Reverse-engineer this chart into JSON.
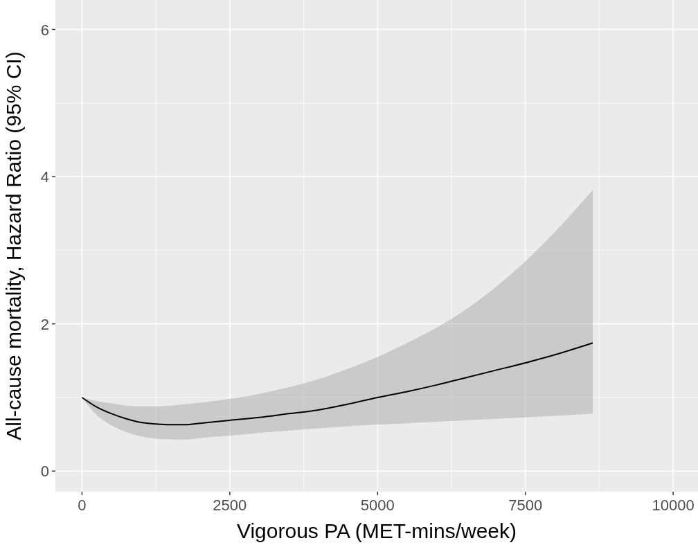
{
  "chart_data": {
    "type": "line",
    "xlabel": "Vigorous PA (MET-mins/week)",
    "ylabel": "All-cause mortality, Hazard Ratio (95% CI)",
    "x": [
      0,
      250,
      500,
      750,
      1000,
      1250,
      1500,
      1750,
      2000,
      2500,
      3000,
      3500,
      4000,
      4500,
      5000,
      5500,
      6000,
      6500,
      7000,
      7500,
      8000,
      8640
    ],
    "series": [
      {
        "color": "#000000",
        "values": [
          1.0,
          0.87,
          0.78,
          0.71,
          0.66,
          0.64,
          0.63,
          0.63,
          0.65,
          0.69,
          0.73,
          0.78,
          0.83,
          0.91,
          1.0,
          1.08,
          1.17,
          1.27,
          1.37,
          1.47,
          1.58,
          1.74
        ],
        "lower": [
          1.0,
          0.76,
          0.62,
          0.53,
          0.47,
          0.44,
          0.43,
          0.43,
          0.45,
          0.48,
          0.52,
          0.55,
          0.58,
          0.61,
          0.63,
          0.65,
          0.67,
          0.69,
          0.71,
          0.73,
          0.75,
          0.78
        ],
        "upper": [
          1.0,
          0.95,
          0.92,
          0.89,
          0.88,
          0.88,
          0.89,
          0.91,
          0.93,
          0.98,
          1.05,
          1.14,
          1.25,
          1.39,
          1.55,
          1.74,
          1.95,
          2.2,
          2.5,
          2.85,
          3.25,
          3.82
        ]
      }
    ],
    "xlim": [
      -450,
      10420
    ],
    "ylim": [
      -0.28,
      6.4
    ],
    "xticks": [
      0,
      2500,
      5000,
      7500,
      10000
    ],
    "yticks": [
      0,
      2,
      4,
      6
    ],
    "grid": true,
    "line_style": "solid",
    "marker": "none"
  }
}
